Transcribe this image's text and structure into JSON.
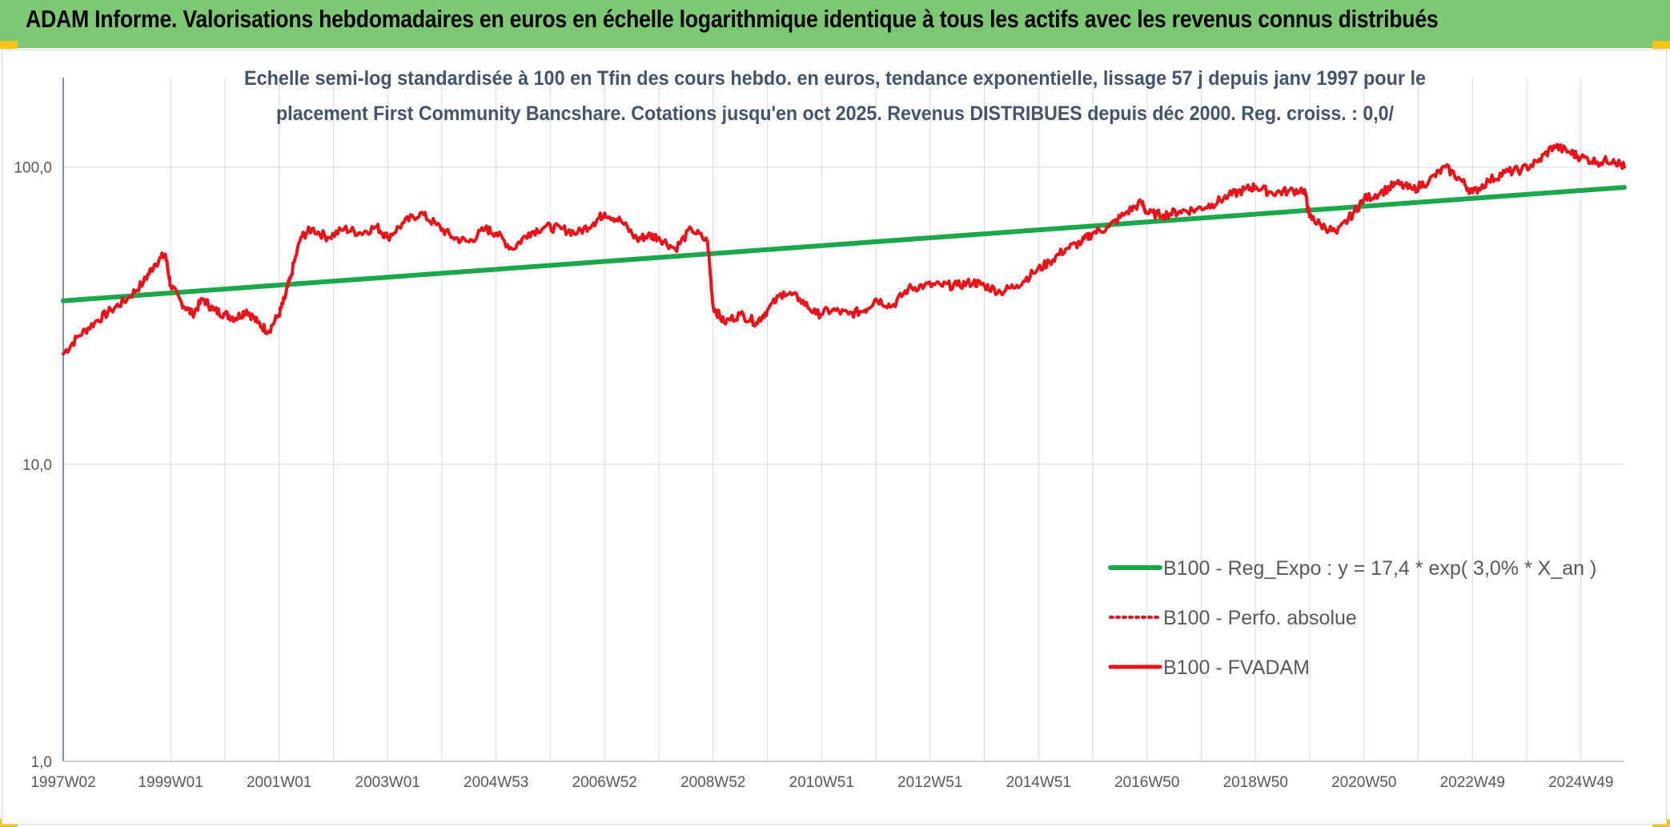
{
  "header": {
    "title": "ADAM Informe. Valorisations hebdomadaires en euros en échelle logarithmique identique à tous les actifs avec les revenus connus distribués",
    "band_color": "#7dc873",
    "corner_color": "#f6c21c"
  },
  "chart_data": {
    "type": "line",
    "title": "",
    "subtitle_lines": [
      "Echelle semi-log standardisée à 100 en Tfin des cours hebdo. en euros, tendance exponentielle, lissage 57 j depuis janv 1997 pour le",
      "placement First Community Bancshare. Cotations jusqu'en oct 2025. Revenus DISTRIBUES depuis déc 2000. Reg. croiss. : 0,0/"
    ],
    "xlabel": "",
    "ylabel": "",
    "y_scale": "log",
    "ylim": [
      1,
      200
    ],
    "y_ticks": [
      {
        "value": 100,
        "label": "100,0"
      },
      {
        "value": 10,
        "label": "10,0"
      },
      {
        "value": 1,
        "label": "1,0"
      }
    ],
    "x_range": [
      1997.02,
      2025.8
    ],
    "x_ticks": [
      {
        "value": 1997.02,
        "label": "1997W02"
      },
      {
        "value": 1999.0,
        "label": "1999W01"
      },
      {
        "value": 2001.0,
        "label": "2001W01"
      },
      {
        "value": 2003.0,
        "label": "2003W01"
      },
      {
        "value": 2005.0,
        "label": "2004W53"
      },
      {
        "value": 2007.0,
        "label": "2006W52"
      },
      {
        "value": 2009.0,
        "label": "2008W52"
      },
      {
        "value": 2011.0,
        "label": "2010W51"
      },
      {
        "value": 2013.0,
        "label": "2012W51"
      },
      {
        "value": 2015.0,
        "label": "2014W51"
      },
      {
        "value": 2017.0,
        "label": "2016W50"
      },
      {
        "value": 2019.0,
        "label": "2018W50"
      },
      {
        "value": 2021.0,
        "label": "2020W50"
      },
      {
        "value": 2023.0,
        "label": "2022W49"
      },
      {
        "value": 2025.0,
        "label": "2024W49"
      }
    ],
    "grid": {
      "vertical": true,
      "horizontal": true
    },
    "legend_position": "bottom-right",
    "series": [
      {
        "name": "B100 - Reg_Expo : y = 17,4 * exp( 3,0% *  X_an )",
        "color": "#1aa84a",
        "style": "solid",
        "x": [
          1997.02,
          2025.8
        ],
        "y": [
          35.5,
          85.5
        ]
      },
      {
        "name": "B100 - Perfo. absolue",
        "color": "#e8141b",
        "style": "dotted",
        "x": [],
        "y": []
      },
      {
        "name": "B100 - FVADAM",
        "color": "#e8141b",
        "style": "solid",
        "x": [
          1997.02,
          1997.3,
          1997.6,
          1997.9,
          1998.2,
          1998.5,
          1998.7,
          1998.9,
          1999.0,
          1999.2,
          1999.4,
          1999.6,
          1999.8,
          2000.0,
          2000.2,
          2000.4,
          2000.6,
          2000.8,
          2001.0,
          2001.1,
          2001.2,
          2001.4,
          2001.6,
          2001.9,
          2002.2,
          2002.5,
          2002.8,
          2003.0,
          2003.3,
          2003.6,
          2003.9,
          2004.2,
          2004.5,
          2004.8,
          2005.0,
          2005.3,
          2005.6,
          2005.9,
          2006.2,
          2006.5,
          2006.8,
          2007.0,
          2007.3,
          2007.6,
          2007.8,
          2008.0,
          2008.3,
          2008.6,
          2008.9,
          2009.0,
          2009.2,
          2009.5,
          2009.8,
          2010.0,
          2010.3,
          2010.6,
          2010.9,
          2011.2,
          2011.5,
          2011.8,
          2012.0,
          2012.3,
          2012.6,
          2012.9,
          2013.2,
          2013.5,
          2013.8,
          2014.0,
          2014.3,
          2014.6,
          2014.9,
          2015.2,
          2015.5,
          2015.8,
          2016.0,
          2016.3,
          2016.6,
          2016.9,
          2017.0,
          2017.3,
          2017.6,
          2017.9,
          2018.2,
          2018.5,
          2018.8,
          2019.0,
          2019.3,
          2019.6,
          2019.9,
          2020.0,
          2020.2,
          2020.5,
          2020.8,
          2021.0,
          2021.3,
          2021.6,
          2021.9,
          2022.2,
          2022.5,
          2022.8,
          2023.0,
          2023.3,
          2023.6,
          2023.9,
          2024.2,
          2024.5,
          2024.8,
          2025.0,
          2025.3,
          2025.6,
          2025.8
        ],
        "y": [
          23.5,
          27,
          30,
          33,
          36,
          41,
          47,
          51,
          40,
          35,
          32,
          36,
          33,
          32,
          31,
          33,
          30,
          28,
          32,
          36,
          42,
          58,
          62,
          58,
          62,
          60,
          63,
          58,
          65,
          70,
          64,
          58,
          56,
          62,
          60,
          53,
          60,
          63,
          62,
          60,
          65,
          70,
          66,
          57,
          59,
          58,
          53,
          62,
          56,
          34,
          30,
          32,
          30,
          33,
          38,
          36,
          32,
          33,
          32,
          33,
          36,
          34,
          39,
          40,
          40,
          40,
          41,
          40,
          38,
          40,
          44,
          48,
          53,
          56,
          60,
          63,
          70,
          76,
          70,
          69,
          71,
          72,
          75,
          80,
          84,
          86,
          82,
          83,
          84,
          68,
          64,
          60,
          70,
          78,
          82,
          88,
          84,
          90,
          100,
          90,
          82,
          90,
          96,
          98,
          104,
          118,
          112,
          108,
          104,
          106,
          100
        ]
      }
    ]
  }
}
